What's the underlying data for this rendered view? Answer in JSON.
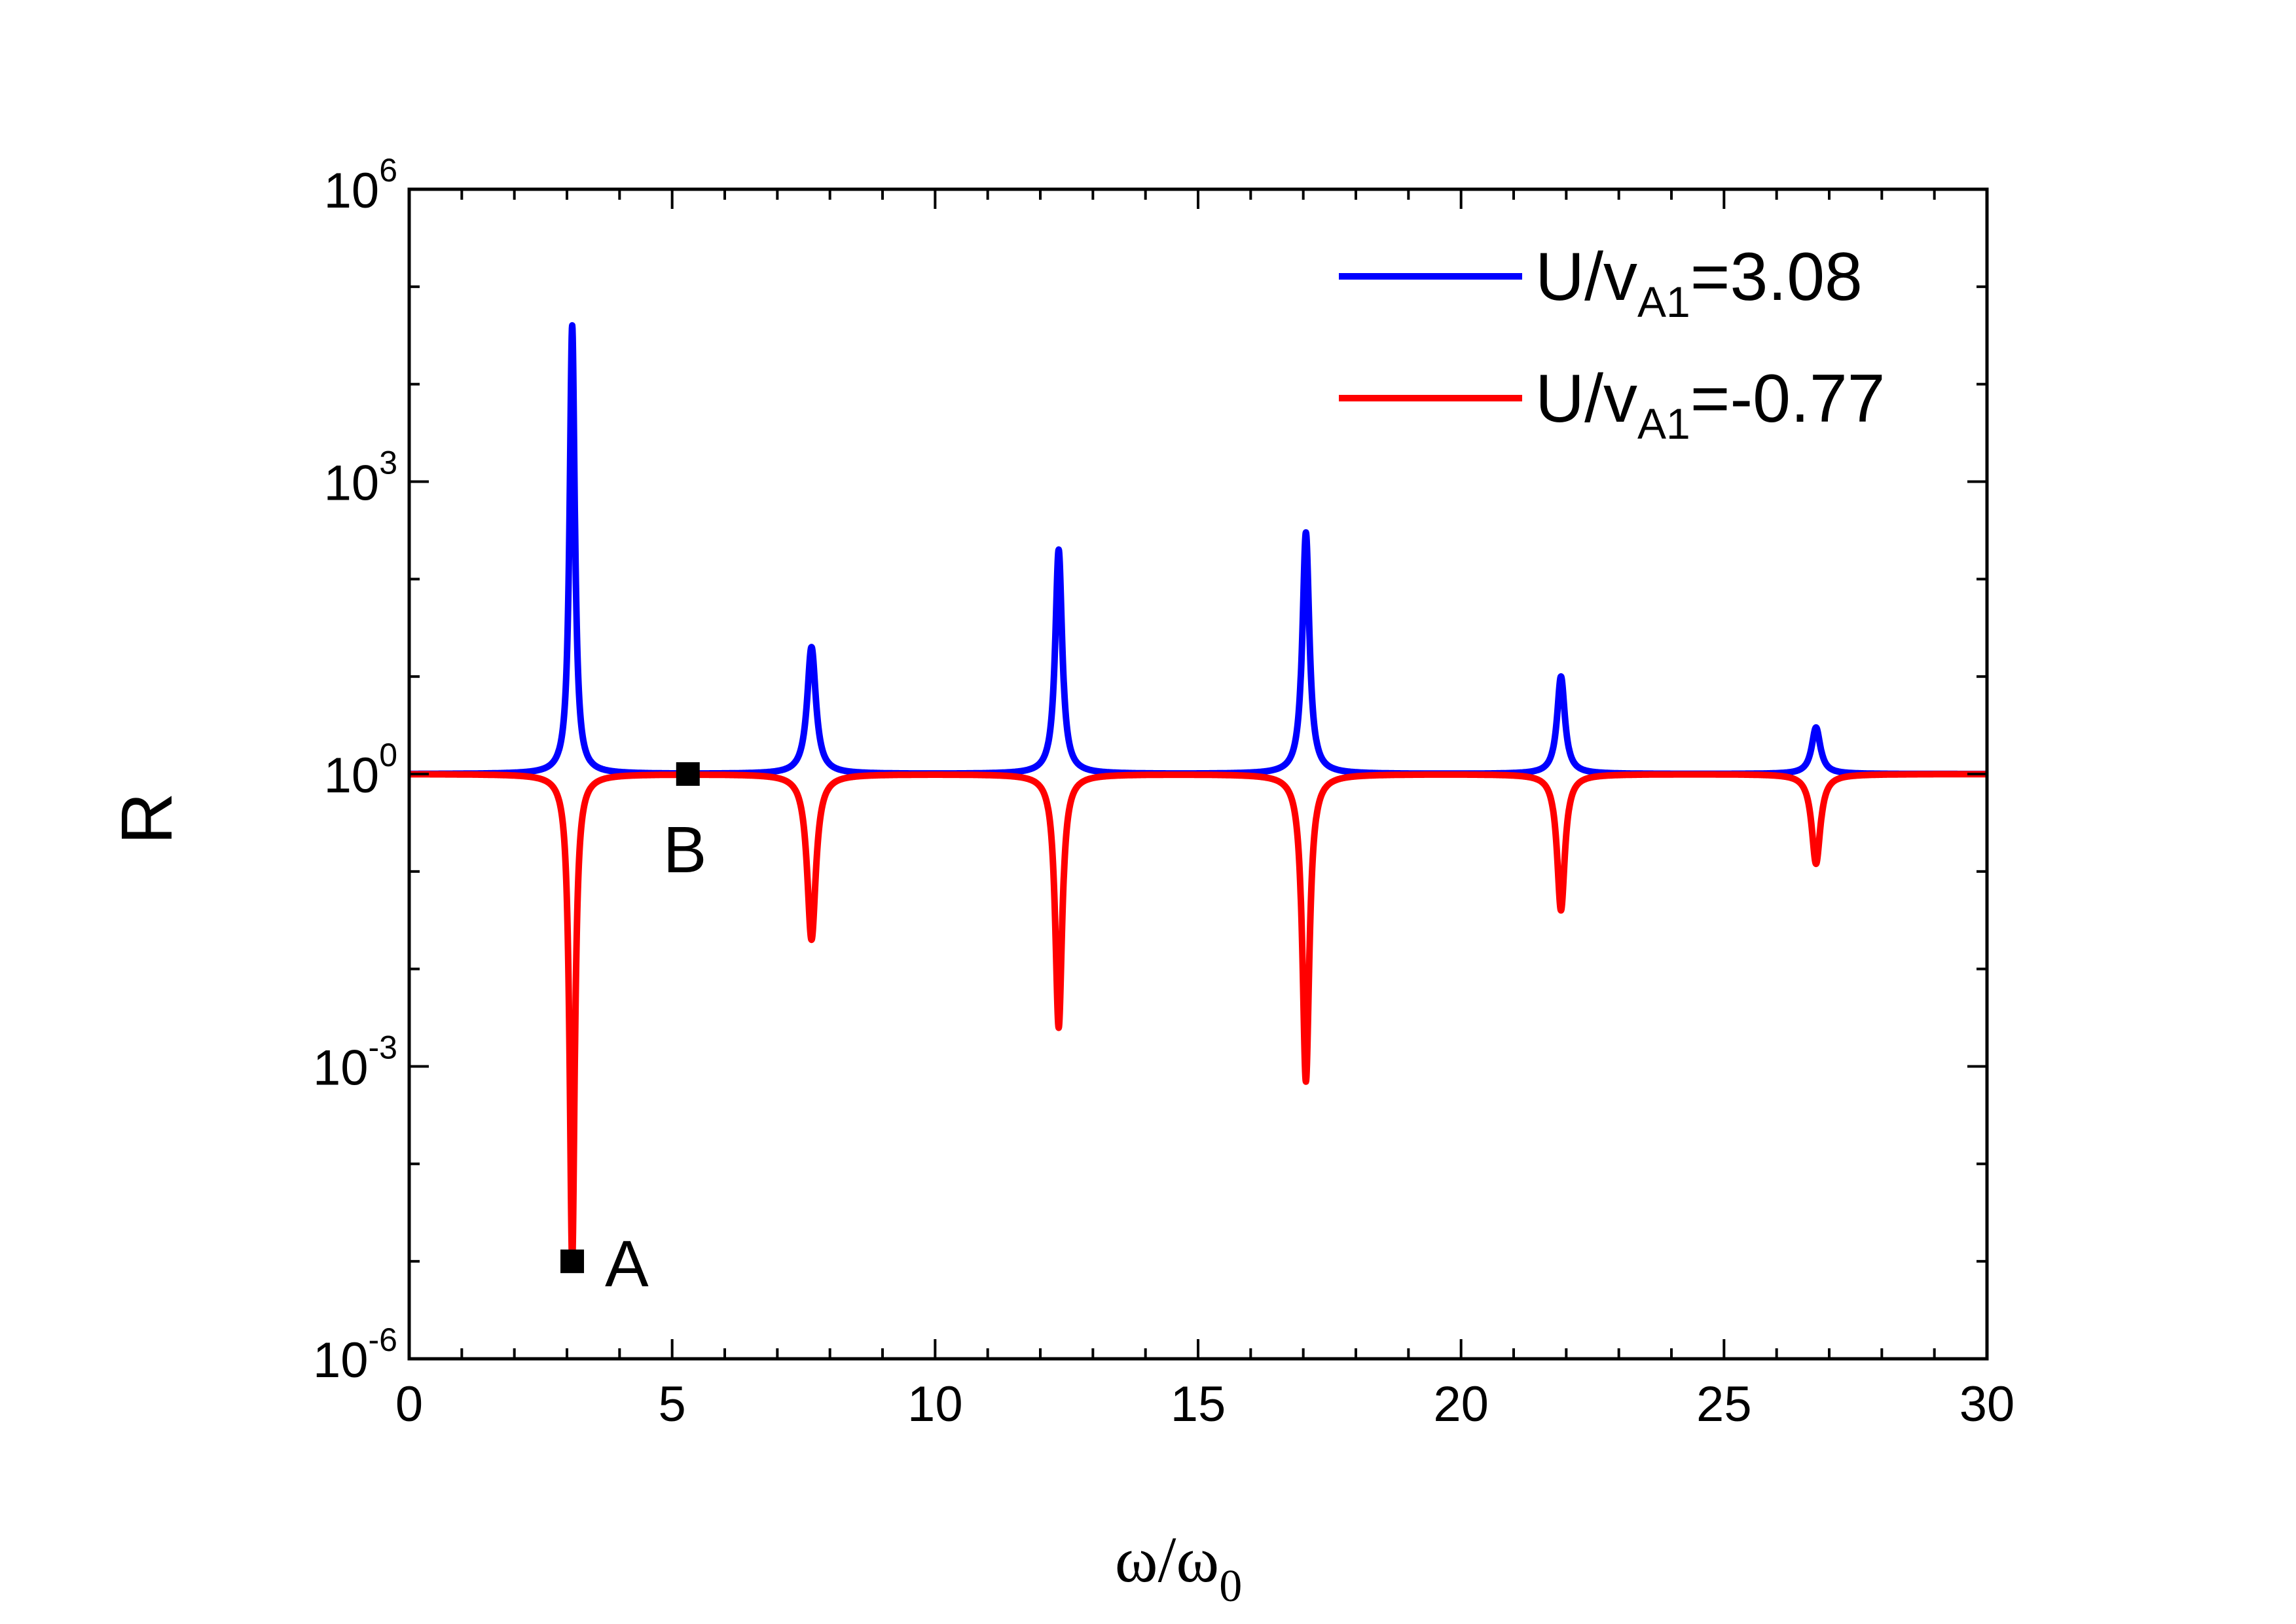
{
  "chart_data": {
    "type": "line",
    "title": "",
    "xlabel": "ω/ω",
    "xlabel_sub": "0",
    "ylabel": "R",
    "xscale": "linear",
    "yscale": "log",
    "xlim": [
      0,
      30
    ],
    "ylim": [
      1e-06,
      1000000.0
    ],
    "grid": false,
    "legend_position": "top-right",
    "x_ticks": [
      0,
      5,
      10,
      15,
      20,
      25,
      30
    ],
    "x_tick_labels": [
      "0",
      "5",
      "10",
      "15",
      "20",
      "25",
      "30"
    ],
    "y_ticks": [
      -6,
      -3,
      0,
      3,
      6
    ],
    "y_tick_bases": [
      "10",
      "10",
      "10",
      "10",
      "10"
    ],
    "y_tick_exps": [
      "-6",
      "-3",
      "0",
      "3",
      "6"
    ],
    "series": [
      {
        "name": "U/vA1=3.08",
        "label_main": "U/v",
        "label_sub": "A1",
        "label_value": "=3.08",
        "color": "#0000ff",
        "baseline": 1,
        "resonances": [
          {
            "x": 3.1,
            "peak": 40000,
            "width": 0.06
          },
          {
            "x": 7.65,
            "peak": 20,
            "width": 0.1
          },
          {
            "x": 12.35,
            "peak": 200,
            "width": 0.08
          },
          {
            "x": 17.05,
            "peak": 300,
            "width": 0.08
          },
          {
            "x": 21.9,
            "peak": 10,
            "width": 0.09
          },
          {
            "x": 26.75,
            "peak": 3,
            "width": 0.1
          }
        ]
      },
      {
        "name": "U/vA1=-0.77",
        "label_main": "U/v",
        "label_sub": "A1",
        "label_value": "=-0.77",
        "color": "#ff0000",
        "baseline": 1,
        "resonances": [
          {
            "x": 3.1,
            "peak": 1e-05,
            "width": 0.06
          },
          {
            "x": 7.65,
            "peak": 0.02,
            "width": 0.1
          },
          {
            "x": 12.35,
            "peak": 0.0025,
            "width": 0.08
          },
          {
            "x": 17.05,
            "peak": 0.0007,
            "width": 0.08
          },
          {
            "x": 21.9,
            "peak": 0.04,
            "width": 0.09
          },
          {
            "x": 26.75,
            "peak": 0.12,
            "width": 0.1
          }
        ]
      }
    ],
    "annotations": [
      {
        "label": "A",
        "x": 3.1,
        "y": 1e-05
      },
      {
        "label": "B",
        "x": 5.3,
        "y": 1
      }
    ]
  }
}
